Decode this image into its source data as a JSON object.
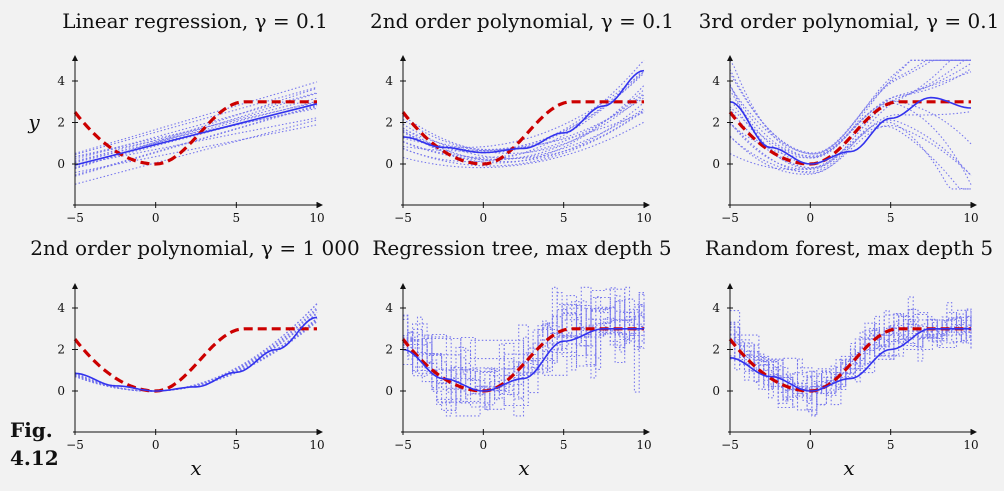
{
  "figure": {
    "label_line1": "Fig.",
    "label_line2": "4.12"
  },
  "colors": {
    "truth": "#cc0000",
    "mean": "#3333ee",
    "ensemble": "#7777ee",
    "axis": "#111111",
    "background": "#f2f2f2"
  },
  "chart_data": [
    {
      "type": "line",
      "title": "Linear regression, γ = 0.1",
      "xlabel": "",
      "ylabel": "y",
      "xlim": [
        -5,
        10
      ],
      "ylim": [
        -1,
        5
      ],
      "xticks": [
        "−5",
        "0",
        "5",
        "10"
      ],
      "yticks": [
        "0",
        "2",
        "4"
      ],
      "series": [
        {
          "role": "true function",
          "style": "dashed",
          "x": [
            -5,
            -2.5,
            0,
            2.5,
            5.5,
            10
          ],
          "y": [
            2.5,
            0.6,
            0,
            0.6,
            3,
            3
          ]
        },
        {
          "role": "mean model",
          "style": "solid",
          "x": [
            -5,
            10
          ],
          "y": [
            -0.05,
            2.9
          ]
        },
        {
          "role": "ensemble",
          "style": "dotted",
          "x": [
            -5,
            10
          ],
          "y_bands": [
            [
              -0.8,
              2.0
            ],
            [
              0.8,
              3.5
            ]
          ]
        }
      ]
    },
    {
      "type": "line",
      "title": "2nd order polynomial, γ = 0.1",
      "xlabel": "",
      "ylabel": "",
      "xlim": [
        -5,
        10
      ],
      "ylim": [
        -1,
        5
      ],
      "xticks": [
        "−5",
        "0",
        "5",
        "10"
      ],
      "yticks": [
        "0",
        "2",
        "4"
      ],
      "series": [
        {
          "role": "true function",
          "style": "dashed",
          "x": [
            -5,
            -2.5,
            0,
            2.5,
            5.5,
            10
          ],
          "y": [
            2.5,
            0.6,
            0,
            0.6,
            3,
            3
          ]
        },
        {
          "role": "mean model",
          "style": "solid",
          "x": [
            -5,
            -2.5,
            0,
            2.5,
            5,
            7.5,
            10
          ],
          "y": [
            1.3,
            0.8,
            0.55,
            0.75,
            1.5,
            2.8,
            4.5
          ]
        }
      ]
    },
    {
      "type": "line",
      "title": "3rd order polynomial, γ = 0.1",
      "xlabel": "",
      "ylabel": "",
      "xlim": [
        -5,
        10
      ],
      "ylim": [
        -1,
        5
      ],
      "xticks": [
        "−5",
        "0",
        "5",
        "10"
      ],
      "yticks": [
        "0",
        "2",
        "4"
      ],
      "series": [
        {
          "role": "true function",
          "style": "dashed",
          "x": [
            -5,
            -2.5,
            0,
            2.5,
            5.5,
            10
          ],
          "y": [
            2.5,
            0.6,
            0,
            0.6,
            3,
            3
          ]
        },
        {
          "role": "mean model",
          "style": "solid",
          "x": [
            -5,
            -2.5,
            0,
            2.5,
            5,
            7.5,
            10
          ],
          "y": [
            3.0,
            0.8,
            0.0,
            0.6,
            2.2,
            3.2,
            2.7
          ]
        }
      ]
    },
    {
      "type": "line",
      "title": "2nd order polynomial, γ = 1 000",
      "xlabel": "x",
      "ylabel": "",
      "xlim": [
        -5,
        10
      ],
      "ylim": [
        -1,
        5
      ],
      "xticks": [
        "−5",
        "0",
        "5",
        "10"
      ],
      "yticks": [
        "0",
        "2",
        "4"
      ],
      "series": [
        {
          "role": "true function",
          "style": "dashed",
          "x": [
            -5,
            -2.5,
            0,
            2.5,
            5.5,
            10
          ],
          "y": [
            2.5,
            0.6,
            0,
            0.6,
            3,
            3
          ]
        },
        {
          "role": "mean model",
          "style": "solid",
          "x": [
            -5,
            -2.5,
            0,
            2.5,
            5,
            7.5,
            10
          ],
          "y": [
            0.85,
            0.25,
            0.0,
            0.2,
            0.9,
            2.0,
            3.55
          ]
        }
      ]
    },
    {
      "type": "line",
      "title": "Regression tree, max depth 5",
      "xlabel": "x",
      "ylabel": "",
      "xlim": [
        -5,
        10
      ],
      "ylim": [
        -1,
        5
      ],
      "xticks": [
        "−5",
        "0",
        "5",
        "10"
      ],
      "yticks": [
        "0",
        "2",
        "4"
      ],
      "series": [
        {
          "role": "true function",
          "style": "dashed",
          "x": [
            -5,
            -2.5,
            0,
            2.5,
            5.5,
            10
          ],
          "y": [
            2.5,
            0.6,
            0,
            0.6,
            3,
            3
          ]
        },
        {
          "role": "mean model",
          "style": "solid",
          "x": [
            -5,
            -2.5,
            0,
            2.5,
            5,
            7.5,
            10
          ],
          "y": [
            2.0,
            0.6,
            0.0,
            0.6,
            2.4,
            3.0,
            3.0
          ]
        }
      ]
    },
    {
      "type": "line",
      "title": "Random forest, max depth 5",
      "xlabel": "x",
      "ylabel": "",
      "xlim": [
        -5,
        10
      ],
      "ylim": [
        -1,
        5
      ],
      "xticks": [
        "−5",
        "0",
        "5",
        "10"
      ],
      "yticks": [
        "0",
        "2",
        "4"
      ],
      "series": [
        {
          "role": "true function",
          "style": "dashed",
          "x": [
            -5,
            -2.5,
            0,
            2.5,
            5.5,
            10
          ],
          "y": [
            2.5,
            0.6,
            0,
            0.6,
            3,
            3
          ]
        },
        {
          "role": "mean model",
          "style": "solid",
          "x": [
            -5,
            -2.5,
            0,
            2.5,
            5,
            7.5,
            10
          ],
          "y": [
            1.6,
            0.7,
            0.0,
            0.6,
            2.0,
            3.0,
            3.0
          ]
        }
      ]
    }
  ]
}
